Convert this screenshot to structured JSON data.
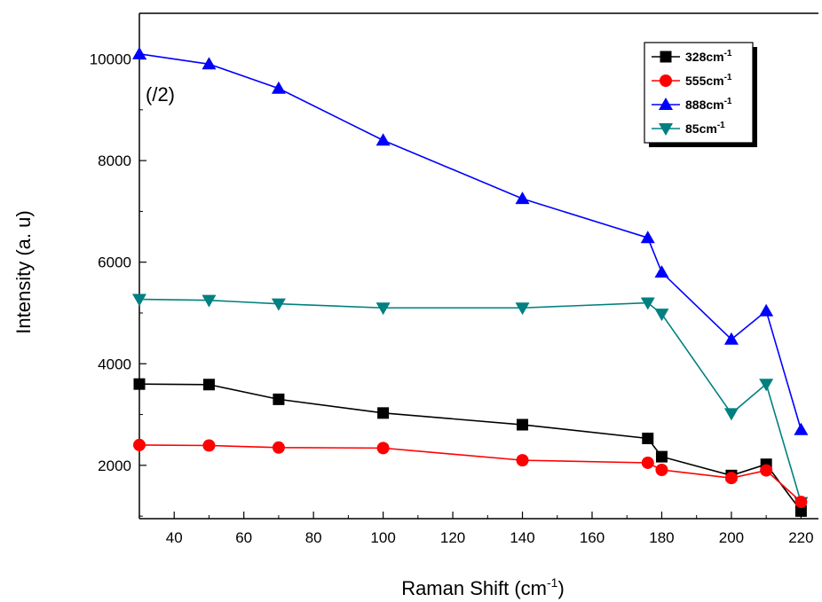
{
  "chart_data": {
    "type": "line",
    "title": "",
    "xlabel": "Raman Shift (cm",
    "xlabel_sup": "-1",
    "xlabel_end": ")",
    "ylabel": "Intensity (a. u)",
    "annotation": "(/2)",
    "xlim": [
      30,
      225
    ],
    "ylim": [
      950,
      10900
    ],
    "xticks": [
      40,
      60,
      80,
      100,
      120,
      140,
      160,
      180,
      200,
      220
    ],
    "yticks": [
      2000,
      4000,
      6000,
      8000,
      10000
    ],
    "grid": false,
    "legend_position": "top-right",
    "x": [
      30,
      50,
      70,
      100,
      140,
      176,
      180,
      200,
      210,
      220
    ],
    "series": [
      {
        "name": "328cm",
        "name_sup": "-1",
        "color": "#000000",
        "marker": "square",
        "values": [
          3600,
          3590,
          3300,
          3030,
          2800,
          2530,
          2170,
          1800,
          2020,
          1100
        ]
      },
      {
        "name": "555cm",
        "name_sup": "-1",
        "color": "#ff0000",
        "marker": "circle",
        "values": [
          2400,
          2390,
          2350,
          2340,
          2100,
          2050,
          1910,
          1750,
          1900,
          1280
        ]
      },
      {
        "name": "888cm",
        "name_sup": "-1",
        "color": "#0000ff",
        "marker": "triangle-up",
        "values": [
          10100,
          9900,
          9420,
          8400,
          7250,
          6480,
          5800,
          4480,
          5040,
          2700
        ]
      },
      {
        "name": "85cm",
        "name_sup": "-1",
        "color": "#008080",
        "marker": "triangle-down",
        "values": [
          5270,
          5250,
          5180,
          5100,
          5100,
          5200,
          4980,
          3020,
          3600,
          1270
        ]
      }
    ]
  }
}
